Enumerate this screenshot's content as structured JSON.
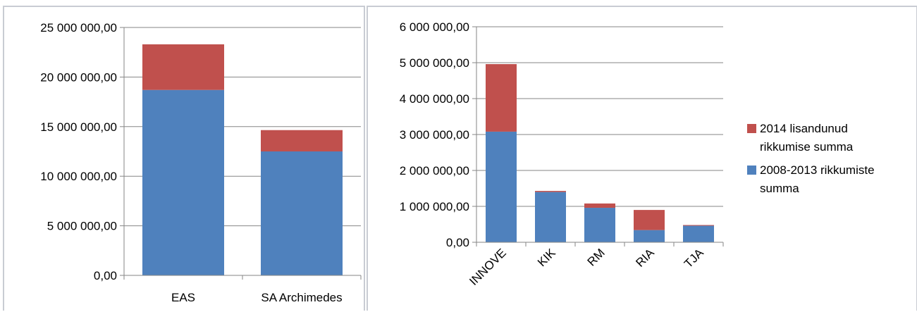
{
  "chart_data": [
    {
      "type": "bar",
      "stacked": true,
      "categories": [
        "EAS",
        "SA Archimedes"
      ],
      "series": [
        {
          "name": "2008-2013 rikkumiste summa",
          "color": "#4f81bd",
          "values": [
            18700000,
            12500000
          ]
        },
        {
          "name": "2014 lisandunud rikkumise summa",
          "color": "#c0504d",
          "values": [
            4600000,
            2150000
          ]
        }
      ],
      "ylim": [
        0,
        25000000
      ],
      "yticks": [
        "0,00",
        "5 000 000,00",
        "10 000 000,00",
        "15 000 000,00",
        "20 000 000,00",
        "25 000 000,00"
      ],
      "grid": true,
      "legend": "none"
    },
    {
      "type": "bar",
      "stacked": true,
      "categories": [
        "INNOVE",
        "KIK",
        "RM",
        "RIA",
        "TJA"
      ],
      "series": [
        {
          "name": "2008-2013 rikkumiste summa",
          "color": "#4f81bd",
          "values": [
            3080000,
            1400000,
            960000,
            340000,
            460000
          ]
        },
        {
          "name": "2014 lisandunud rikkumise summa",
          "color": "#c0504d",
          "values": [
            1880000,
            30000,
            120000,
            560000,
            20000
          ]
        }
      ],
      "ylim": [
        0,
        6000000
      ],
      "yticks": [
        "0,00",
        "1 000 000,00",
        "2 000 000,00",
        "3 000 000,00",
        "4 000 000,00",
        "5 000 000,00",
        "6 000 000,00"
      ],
      "grid": true,
      "legend": "right"
    }
  ],
  "legend": {
    "items": [
      {
        "label": "2014 lisandunud rikkumise summa",
        "color": "#c0504d"
      },
      {
        "label": "2008-2013 rikkumiste summa",
        "color": "#4f81bd"
      }
    ]
  }
}
